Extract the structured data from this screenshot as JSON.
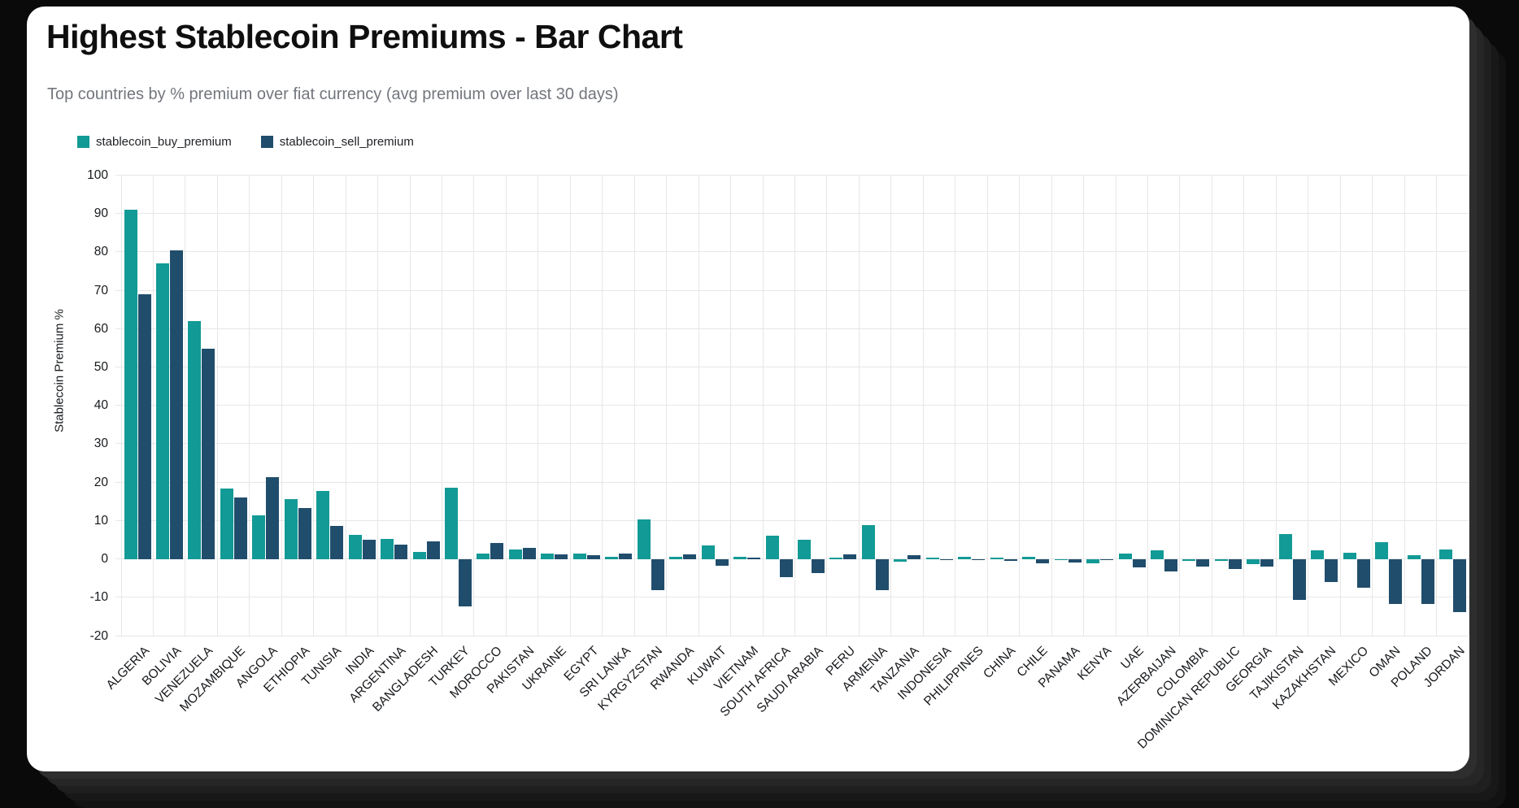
{
  "page": {
    "background": "#0a0a0a",
    "card_background": "#ffffff"
  },
  "header": {
    "title": "Highest Stablecoin Premiums - Bar Chart",
    "subtitle": "Top countries by % premium over fiat currency (avg premium over last 30 days)"
  },
  "legend": [
    {
      "label": "stablecoin_buy_premium",
      "color": "#129a96"
    },
    {
      "label": "stablecoin_sell_premium",
      "color": "#204d6c"
    }
  ],
  "chart_data": {
    "type": "bar",
    "title": "Highest Stablecoin Premiums - Bar Chart",
    "subtitle": "Top countries by % premium over fiat currency (avg premium over last 30 days)",
    "xlabel": "",
    "ylabel": "Stablecoin Premium %",
    "ylim": [
      -20,
      100
    ],
    "ytick_step": 10,
    "grid": true,
    "legend_position": "top-left",
    "grid_color": "#e7e7e9",
    "categories": [
      "ALGERIA",
      "BOLIVIA",
      "VENEZUELA",
      "MOZAMBIQUE",
      "ANGOLA",
      "ETHIOPIA",
      "TUNISIA",
      "INDIA",
      "ARGENTINA",
      "BANGLADESH",
      "TURKEY",
      "MOROCCO",
      "PAKISTAN",
      "UKRAINE",
      "EGYPT",
      "SRI LANKA",
      "KYRGYZSTAN",
      "RWANDA",
      "KUWAIT",
      "VIETNAM",
      "SOUTH AFRICA",
      "SAUDI ARABIA",
      "PERU",
      "ARMENIA",
      "TANZANIA",
      "INDONESIA",
      "PHILIPPINES",
      "CHINA",
      "CHILE",
      "PANAMA",
      "KENYA",
      "UAE",
      "AZERBAIJAN",
      "COLOMBIA",
      "DOMINICAN REPUBLIC",
      "GEORGIA",
      "TAJIKISTAN",
      "KAZAKHSTAN",
      "MEXICO",
      "OMAN",
      "POLAND",
      "JORDAN"
    ],
    "series": [
      {
        "name": "stablecoin_buy_premium",
        "color": "#129a96",
        "values": [
          91,
          77,
          62,
          18.4,
          11.3,
          15.5,
          17.8,
          6.2,
          5.3,
          1.8,
          18.6,
          1.4,
          2.4,
          1.4,
          1.3,
          0.6,
          10.2,
          0.5,
          3.5,
          0.6,
          6.1,
          5.0,
          0.3,
          8.8,
          -0.7,
          0.4,
          0.6,
          0.4,
          0.6,
          -0.1,
          -1.1,
          1.4,
          2.2,
          -0.5,
          -0.5,
          -1.3,
          6.5,
          2.3,
          1.7,
          4.3,
          1.0,
          2.5
        ]
      },
      {
        "name": "stablecoin_sell_premium",
        "color": "#204d6c",
        "values": [
          69,
          80.4,
          54.8,
          16,
          21.4,
          13.2,
          8.6,
          5.0,
          3.8,
          4.6,
          -12.4,
          4.2,
          2.8,
          1.1,
          0.9,
          1.3,
          -8.1,
          1.2,
          -1.8,
          0.4,
          -4.8,
          -3.7,
          1.2,
          -8.1,
          1.0,
          -0.1,
          -0.4,
          -0.6,
          -1.1,
          -1.0,
          -0.1,
          -2.2,
          -3.3,
          -2.0,
          -2.7,
          -2.0,
          -10.6,
          -6.1,
          -7.5,
          -11.7,
          -11.8,
          -13.9
        ]
      }
    ]
  }
}
